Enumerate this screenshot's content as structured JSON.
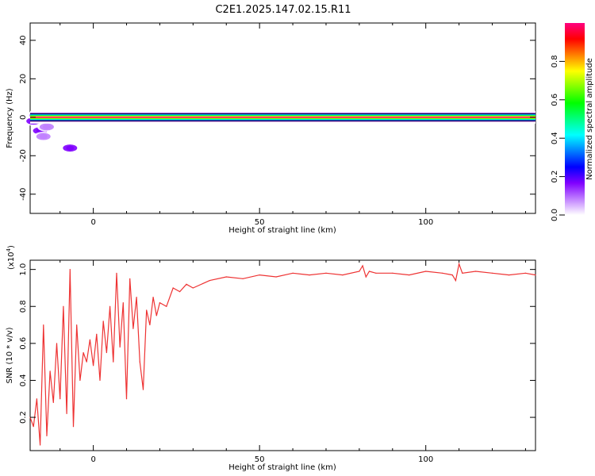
{
  "title": "C2E1.2025.147.02.15.R11",
  "chart_data": [
    {
      "type": "heatmap",
      "title": "C2E1.2025.147.02.15.R11",
      "xlabel": "Height of straight line (km)",
      "ylabel": "Frequency (Hz)",
      "xlim": [
        -19,
        133
      ],
      "ylim": [
        -50,
        49
      ],
      "xticks": [
        0,
        50,
        100
      ],
      "yticks": [
        -40,
        -20,
        0,
        20,
        40
      ],
      "colorbar": {
        "label": "Normalized spectral amplitude",
        "range": [
          0,
          1
        ],
        "ticks": [
          0.0,
          0.2,
          0.4,
          0.6,
          0.8
        ],
        "colormap": [
          "#ffffff",
          "#c080ff",
          "#8000ff",
          "#0000ff",
          "#0080ff",
          "#00ffff",
          "#00ff80",
          "#00ff00",
          "#80ff00",
          "#ffff00",
          "#ff8000",
          "#ff0000",
          "#ff0080"
        ]
      },
      "ridge": {
        "frequency": 0,
        "amplitude": 1.0,
        "x_range": [
          -19,
          133
        ]
      },
      "blobs": [
        {
          "x": -18,
          "y": -2,
          "amplitude": 0.2
        },
        {
          "x": -17,
          "y": 1,
          "amplitude": 0.3
        },
        {
          "x": -16,
          "y": -7,
          "amplitude": 0.2
        },
        {
          "x": -15,
          "y": -10,
          "amplitude": 0.05
        },
        {
          "x": -14,
          "y": -5,
          "amplitude": 0.1
        },
        {
          "x": -13,
          "y": 0,
          "amplitude": 0.45
        },
        {
          "x": -12,
          "y": 1,
          "amplitude": 0.3
        },
        {
          "x": -7,
          "y": -16,
          "amplitude": 0.15
        },
        {
          "x": -6,
          "y": 0,
          "amplitude": 0.55
        },
        {
          "x": -4,
          "y": 1,
          "amplitude": 0.4
        },
        {
          "x": -2,
          "y": 0,
          "amplitude": 0.55
        },
        {
          "x": 8,
          "y": 0,
          "amplitude": 0.4
        },
        {
          "x": 10,
          "y": 1,
          "amplitude": 0.5
        },
        {
          "x": 13,
          "y": 0,
          "amplitude": 0.35
        },
        {
          "x": 16,
          "y": 0,
          "amplitude": 0.2
        },
        {
          "x": 20,
          "y": 0,
          "amplitude": 0.12
        }
      ]
    },
    {
      "type": "line",
      "xlabel": "Height of straight line (km)",
      "ylabel": "SNR (10 * v/v)",
      "y_multiplier_label": "(x10",
      "y_multiplier_exponent": "4",
      "xlim": [
        -19,
        133
      ],
      "ylim": [
        0.02,
        1.05
      ],
      "xticks": [
        0,
        50,
        100
      ],
      "yticks": [
        0.2,
        0.4,
        0.6,
        0.8,
        1.0
      ],
      "color": "#ee3333",
      "series": [
        {
          "x": [
            -19,
            -18,
            -17,
            -16,
            -15,
            -14,
            -13,
            -12,
            -11,
            -10,
            -9,
            -8,
            -7,
            -6,
            -5,
            -4,
            -3,
            -2,
            -1,
            0,
            1,
            2,
            3,
            4,
            5,
            6,
            7,
            8,
            9,
            10,
            11,
            12,
            13,
            14,
            15,
            16,
            17,
            18,
            19,
            20,
            22,
            24,
            26,
            28,
            30,
            35,
            40,
            45,
            50,
            55,
            60,
            65,
            70,
            75,
            80,
            81,
            82,
            83,
            85,
            90,
            95,
            100,
            105,
            108,
            109,
            110,
            111,
            115,
            120,
            125,
            130,
            133
          ],
          "y": [
            0.2,
            0.15,
            0.3,
            0.05,
            0.7,
            0.1,
            0.45,
            0.28,
            0.6,
            0.3,
            0.8,
            0.22,
            1.0,
            0.15,
            0.7,
            0.4,
            0.55,
            0.5,
            0.62,
            0.48,
            0.65,
            0.4,
            0.72,
            0.55,
            0.8,
            0.5,
            0.98,
            0.58,
            0.82,
            0.3,
            0.95,
            0.68,
            0.85,
            0.5,
            0.35,
            0.78,
            0.7,
            0.85,
            0.75,
            0.82,
            0.8,
            0.9,
            0.88,
            0.92,
            0.9,
            0.94,
            0.96,
            0.95,
            0.97,
            0.96,
            0.98,
            0.97,
            0.98,
            0.97,
            0.99,
            1.02,
            0.96,
            0.99,
            0.98,
            0.98,
            0.97,
            0.99,
            0.98,
            0.97,
            0.94,
            1.03,
            0.98,
            0.99,
            0.98,
            0.97,
            0.98,
            0.97
          ]
        }
      ]
    }
  ]
}
